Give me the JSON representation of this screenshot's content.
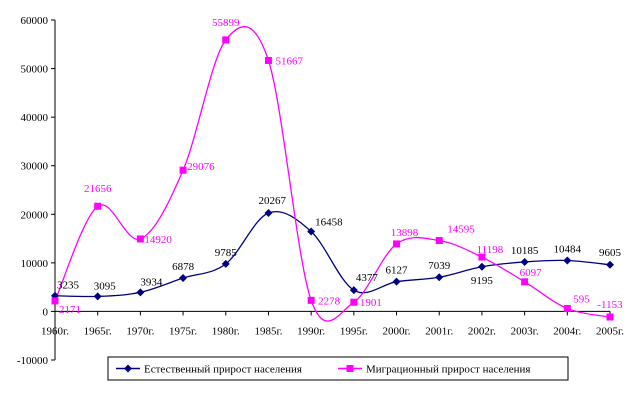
{
  "chart_data": {
    "type": "line",
    "categories": [
      "1960г.",
      "1965г.",
      "1970г.",
      "1975г.",
      "1980г.",
      "1985г.",
      "1990г.",
      "1995г.",
      "2000г.",
      "2001г.",
      "2002г.",
      "2003г.",
      "2004г.",
      "2005г."
    ],
    "series": [
      {
        "name": "Естественный прирост населения",
        "color": "#000080",
        "marker": "diamond",
        "values": [
          3235,
          3095,
          3934,
          6878,
          9785,
          20267,
          16458,
          4377,
          6127,
          7039,
          9195,
          10185,
          10484,
          9605
        ],
        "labels": [
          "3235",
          "3095",
          "3934",
          "6878",
          "9785",
          "20267",
          "16458",
          "4377",
          "6127",
          "7039",
          "9195",
          "10185",
          "10484",
          "9605"
        ]
      },
      {
        "name": "Миграционный прирост населения",
        "color": "#FF00FF",
        "marker": "square",
        "values": [
          2171,
          21656,
          14920,
          29076,
          55899,
          51667,
          2278,
          1901,
          13898,
          14595,
          11198,
          6097,
          595,
          -1153
        ],
        "labels": [
          "2171",
          "21656",
          "14920",
          "29076",
          "55899",
          "51667",
          "2278",
          "1901",
          "13898",
          "14595",
          "11198",
          "6097",
          "595",
          "-1153"
        ]
      }
    ],
    "y_ticks": [
      "-10000",
      "0",
      "10000",
      "20000",
      "30000",
      "40000",
      "50000",
      "60000"
    ],
    "ylim": [
      -10000,
      60000
    ],
    "grid": false,
    "smooth": true,
    "legend_position": "bottom"
  }
}
